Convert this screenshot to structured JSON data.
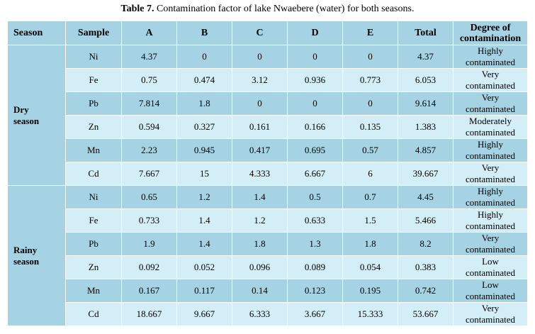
{
  "caption": {
    "label": "Table 7.",
    "text": " Contamination factor of lake Nwaebere (water) for both seasons."
  },
  "headers": {
    "season": "Season",
    "sample": "Sample",
    "a": "A",
    "b": "B",
    "c": "C",
    "d": "D",
    "e": "E",
    "total": "Total",
    "degree_line1": "Degree of",
    "degree_line2": "contamination"
  },
  "groups": [
    {
      "season": "Dry season",
      "rows": [
        {
          "sample": "Ni",
          "a": "4.37",
          "b": "0",
          "c": "0",
          "d": "0",
          "e": "0",
          "total": "4.37",
          "degree_1": "Highly",
          "degree_2": "contaminated"
        },
        {
          "sample": "Fe",
          "a": "0.75",
          "b": "0.474",
          "c": "3.12",
          "d": "0.936",
          "e": "0.773",
          "total": "6.053",
          "degree_1": "Very",
          "degree_2": "contaminated"
        },
        {
          "sample": "Pb",
          "a": "7.814",
          "b": "1.8",
          "c": "0",
          "d": "0",
          "e": "0",
          "total": "9.614",
          "degree_1": "Very",
          "degree_2": "contaminated"
        },
        {
          "sample": "Zn",
          "a": "0.594",
          "b": "0.327",
          "c": "0.161",
          "d": "0.166",
          "e": "0.135",
          "total": "1.383",
          "degree_1": "Moderately",
          "degree_2": "contaminated"
        },
        {
          "sample": "Mn",
          "a": "2.23",
          "b": "0.945",
          "c": "0.417",
          "d": "0.695",
          "e": "0.57",
          "total": "4.857",
          "degree_1": "Highly",
          "degree_2": "contaminated"
        },
        {
          "sample": "Cd",
          "a": "7.667",
          "b": "15",
          "c": "4.333",
          "d": "6.667",
          "e": "6",
          "total": "39.667",
          "degree_1": "Very",
          "degree_2": "contaminated"
        }
      ]
    },
    {
      "season": "Rainy season",
      "rows": [
        {
          "sample": "Ni",
          "a": "0.65",
          "b": "1.2",
          "c": "1.4",
          "d": "0.5",
          "e": "0.7",
          "total": "4.45",
          "degree_1": "Highly",
          "degree_2": "contaminated"
        },
        {
          "sample": "Fe",
          "a": "0.733",
          "b": "1.4",
          "c": "1.2",
          "d": "0.633",
          "e": "1.5",
          "total": "5.466",
          "degree_1": "Highly",
          "degree_2": "contaminated"
        },
        {
          "sample": "Pb",
          "a": "1.9",
          "b": "1.4",
          "c": "1.8",
          "d": "1.3",
          "e": "1.8",
          "total": "8.2",
          "degree_1": "Very",
          "degree_2": "contaminated"
        },
        {
          "sample": "Zn",
          "a": "0.092",
          "b": "0.052",
          "c": "0.096",
          "d": "0.089",
          "e": "0.054",
          "total": "0.383",
          "degree_1": "Low",
          "degree_2": "contaminated"
        },
        {
          "sample": "Mn",
          "a": "0.167",
          "b": "0.117",
          "c": "0.14",
          "d": "0.123",
          "e": "0.195",
          "total": "0.742",
          "degree_1": "Low",
          "degree_2": "contaminated"
        },
        {
          "sample": "Cd",
          "a": "18.667",
          "b": "9.667",
          "c": "6.333",
          "d": "3.667",
          "e": "15.333",
          "total": "53.667",
          "degree_1": "Very",
          "degree_2": "contaminated"
        }
      ]
    }
  ],
  "colors": {
    "header_bg": "#a5d3e3",
    "row_dark": "#a5d3e3",
    "row_light": "#d3eef6"
  }
}
